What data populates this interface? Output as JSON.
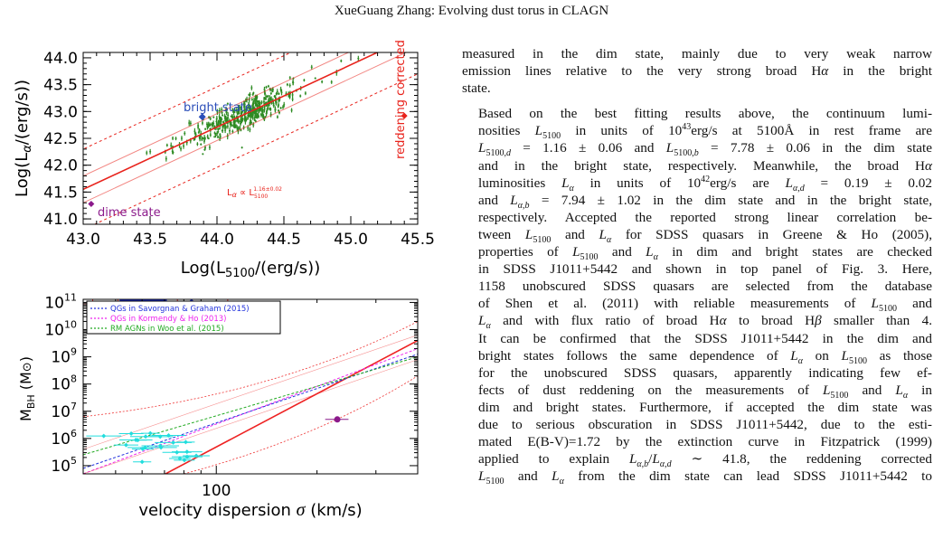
{
  "header": {
    "running_title": "XueGuang Zhang: Evolving dust torus in CLAGN"
  },
  "colors": {
    "fit_line": "#e8231c",
    "band_line": "#e8231c",
    "quasar_points": "#2e8b23",
    "bright_state": "#2a4db8",
    "dim_state": "#8b1a8b",
    "reddening_point": "#e8231c",
    "qg_blue": "#2233dd",
    "qg_red": "#ee2222",
    "agn_cyan": "#22dddd",
    "outlier_purple": "#8b1a8b"
  },
  "chart_data": [
    {
      "type": "scatter",
      "panel": "top",
      "xlabel": "Log(L5100/(erg/s))",
      "ylabel": "Log(Lα/(erg/s))",
      "xlim": [
        43.0,
        45.5
      ],
      "ylim": [
        40.9,
        44.1
      ],
      "xticks": [
        "43.0",
        "43.5",
        "44.0",
        "44.5",
        "45.0",
        "45.5"
      ],
      "yticks": [
        "41.0",
        "41.5",
        "42.0",
        "42.5",
        "43.0",
        "43.5",
        "44.0"
      ],
      "annotations": {
        "bright_label": "bright state",
        "dim_label": "dime state",
        "reddening_label": "reddening corrected",
        "relation_label": "Lα ∝ L5100^1.16±0.02"
      },
      "points": {
        "bright_state": [
          43.89,
          42.9
        ],
        "dim_state": [
          43.06,
          41.28
        ],
        "reddening_corrected": [
          45.4,
          42.92
        ]
      },
      "relation": {
        "slope": 1.16,
        "intercept_at_43": 41.55,
        "bands": [
          0.25,
          0.75
        ]
      },
      "cloud": {
        "count": 420,
        "x_center": 44.2,
        "x_spread": 0.22,
        "y_scatter": 0.14
      }
    },
    {
      "type": "scatter",
      "panel": "bottom",
      "xlabel": "velocity dispersion σ (km/s)",
      "ylabel": "MBH (M⊙)",
      "xscale": "log",
      "yscale": "log",
      "xlim": [
        40,
        400
      ],
      "ylim": [
        50000.0,
        130000000000.0
      ],
      "xtick_label": "100",
      "ytick_exponents": [
        "5",
        "6",
        "7",
        "8",
        "9",
        "10",
        "11"
      ],
      "legend": [
        "QGs in Savorgnan & Graham (2015)",
        "QGs in Kormendy & Ho (2013)",
        "RM AGNs in Woo et al. (2015)"
      ],
      "legend_placement": "top-left",
      "relations": [
        {
          "x": [
            40,
            400
          ],
          "y": [
            3.1,
            9.6
          ]
        },
        {
          "x": [
            40,
            400
          ],
          "y": [
            4.7,
            9.3
          ]
        },
        {
          "x": [
            40,
            400
          ],
          "y": [
            4.9,
            9.1
          ]
        },
        {
          "x": [
            40,
            400
          ],
          "y": [
            5.4,
            9.0
          ]
        }
      ],
      "outlier_point": {
        "sigma": 230,
        "logM": 6.7
      }
    }
  ],
  "text": {
    "lines_p1": [
      "measured in the dim state, mainly due to very weak narrow",
      "emission lines relative to the very strong broad Hα in the bright",
      "state."
    ],
    "lines_p2": [
      "Based on the best fitting results above, the continuum lumi-",
      "nosities L5100 in units of 10^43erg/s at 5100Å  in rest frame are",
      "L5100,d = 1.16 ± 0.06 and L5100,b = 7.78 ± 0.06 in the dim state",
      "and in the bright state, respectively. Meanwhile, the broad Hα",
      "luminosities Lα in units of 10^42erg/s are Lα,d = 0.19 ± 0.02",
      "and Lα,b = 7.94 ± 1.02 in the dim state and in the bright state,",
      "respectively. Accepted the reported strong linear correlation be-",
      "tween L5100 and Lα for SDSS quasars in Greene & Ho (2005),",
      "properties of L5100 and Lα in dim and bright states are checked",
      "in SDSS J1011+5442  and shown in top panel of Fig. 3. Here,",
      "1158 unobscured SDSS quasars are selected from the database",
      "of Shen et al. (2011) with reliable measurements of L5100 and",
      "Lα and with flux ratio of broad Hα to broad Hβ smaller than 4.",
      "It can be confirmed that the SDSS J1011+5442  in the dim and",
      "bright states follows the same dependence of Lα on L5100 as those",
      "for the unobscured SDSS quasars, apparently indicating few ef-",
      "fects of dust reddening on the measurements of L5100 and Lα in",
      "dim and bright states. Furthermore, if accepted the dim state was",
      "due to serious obscuration in SDSS J1011+5442, due to the esti-",
      "mated E(B-V)=1.72 by the extinction curve in Fitzpatrick (1999)",
      "applied to explain Lα,b/Lα,d ∼ 41.8, the reddening corrected",
      "L5100 and Lα from the dim state can lead SDSS J1011+5442  to"
    ]
  }
}
